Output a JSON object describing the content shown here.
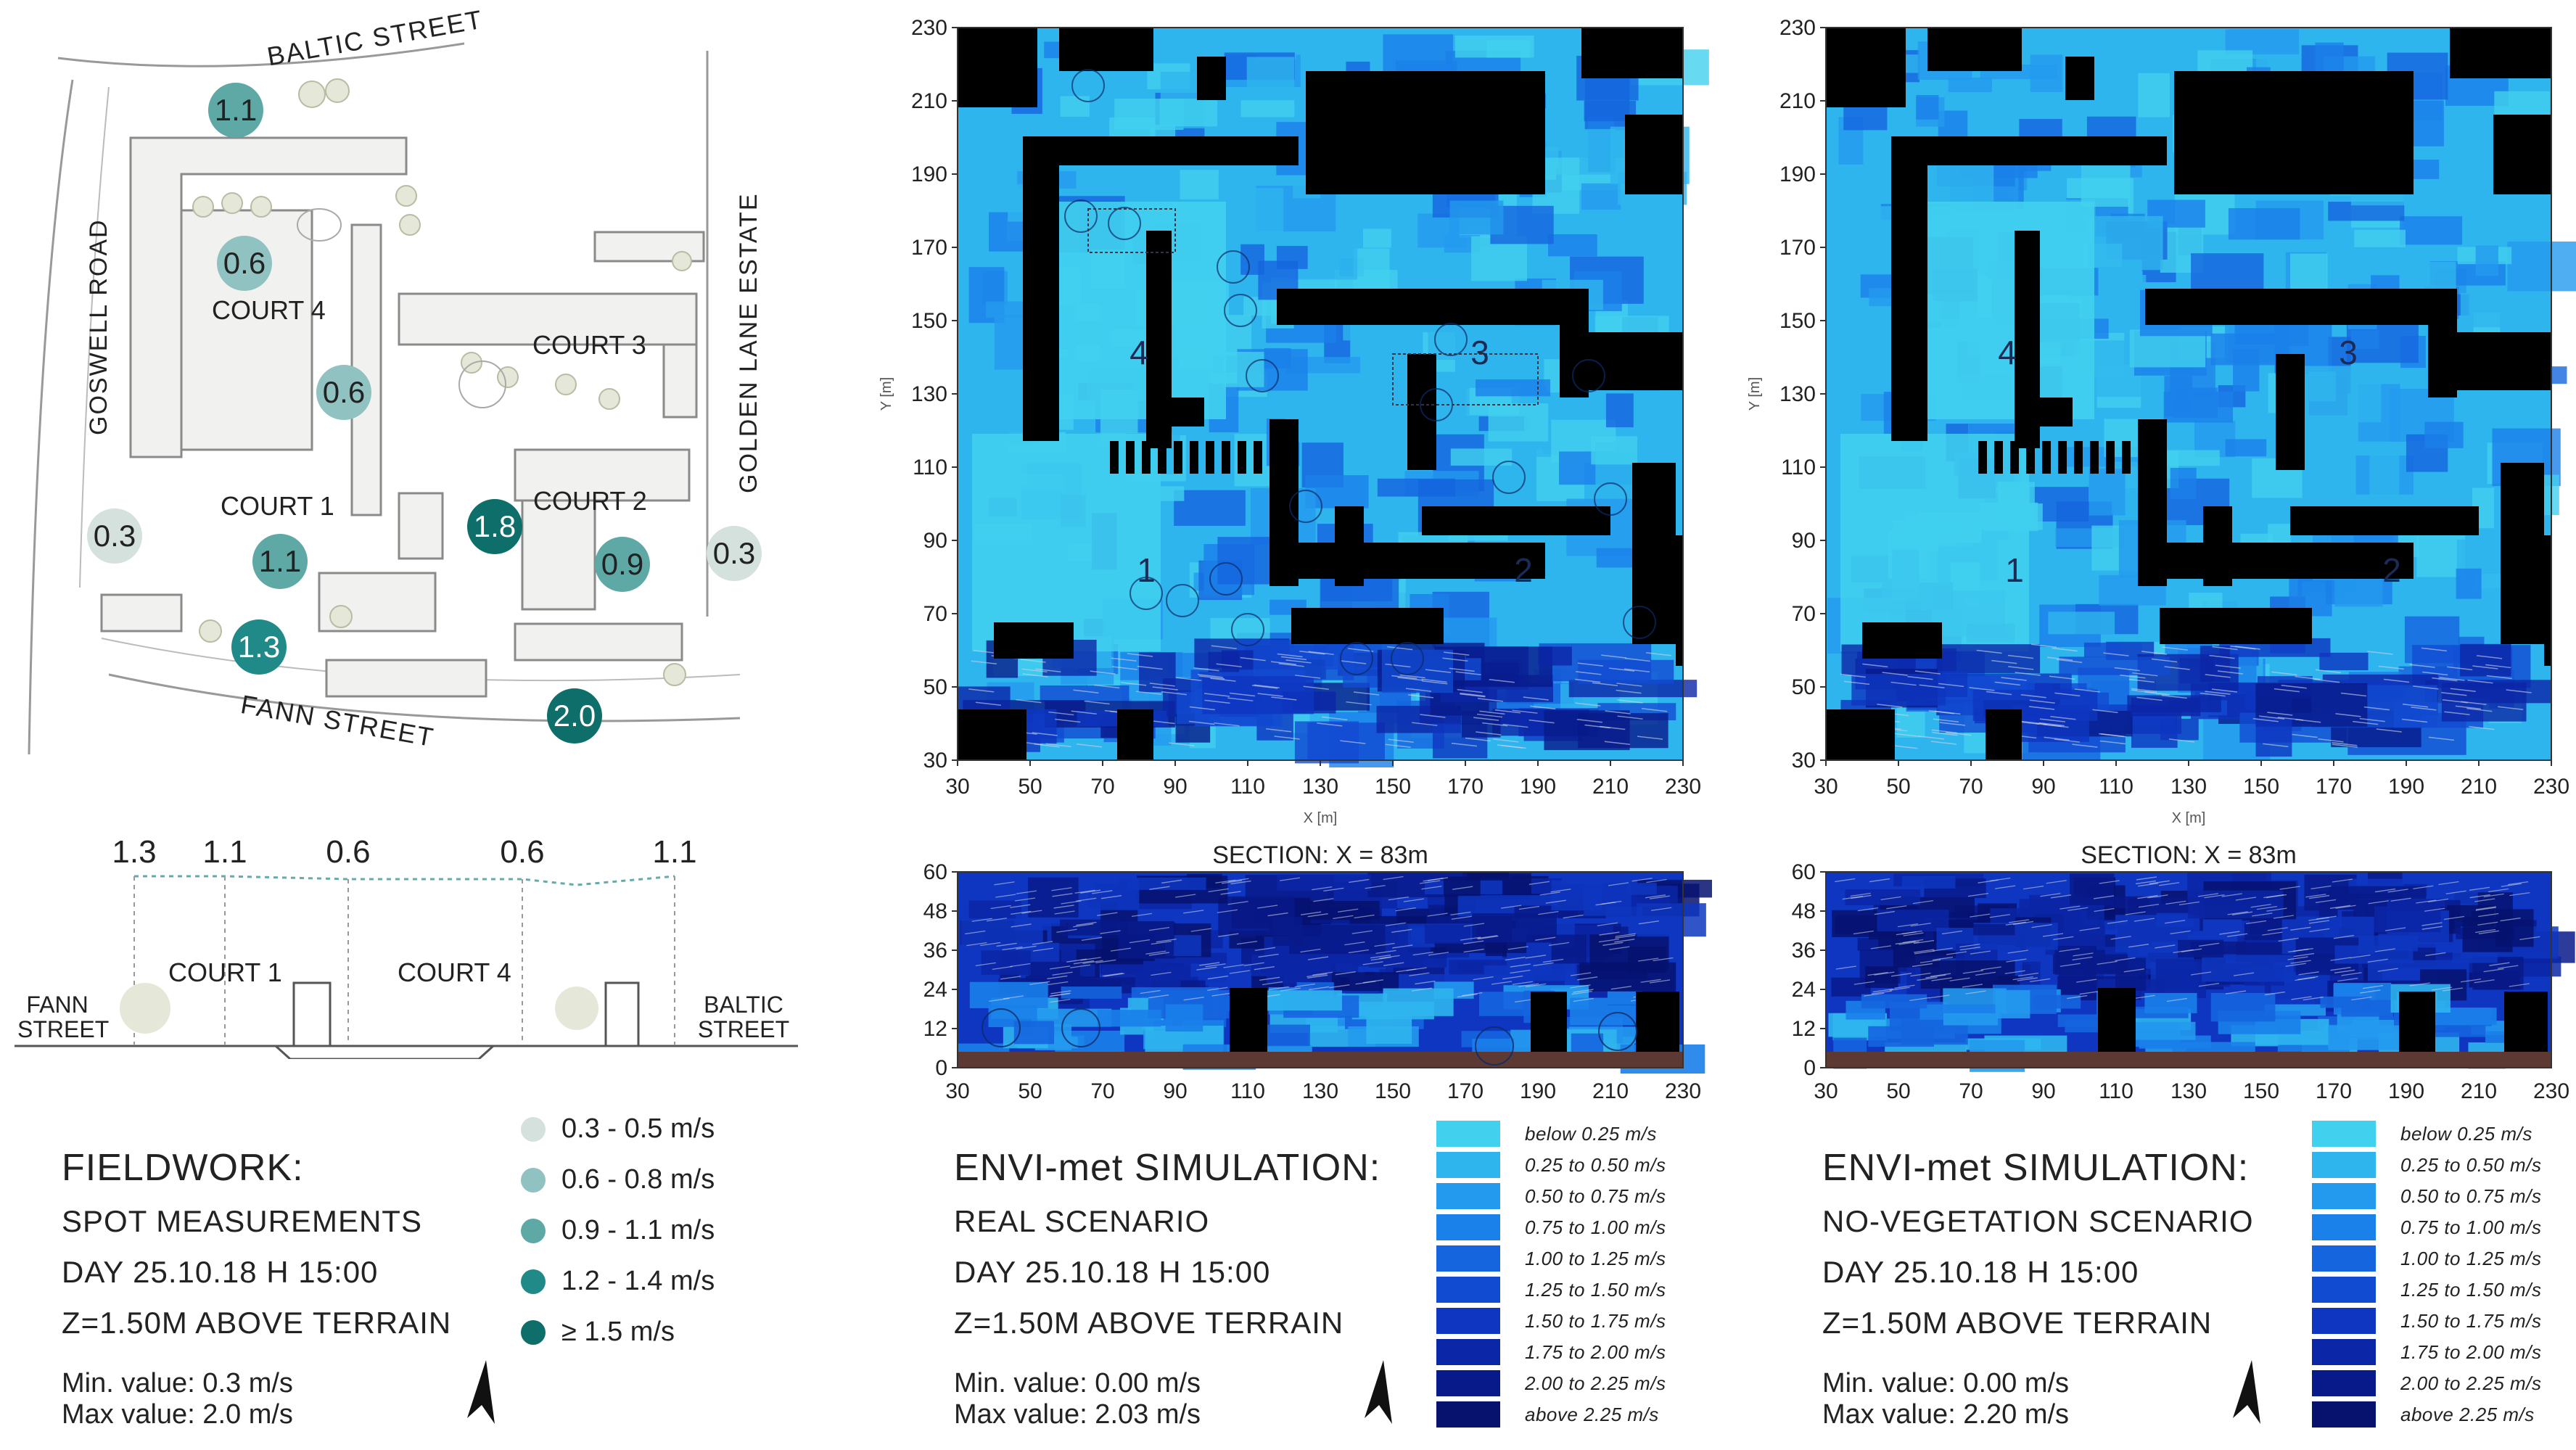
{
  "fieldwork": {
    "map": {
      "streets": {
        "baltic": "BALTIC STREET",
        "goswell": "GOSWELL ROAD",
        "golden": "GOLDEN LANE ESTATE",
        "fann": "FANN STREET"
      },
      "courts": [
        "COURT 4",
        "COURT 3",
        "COURT 1",
        "COURT 2"
      ],
      "measurements": [
        {
          "label": "1.1",
          "level": 0.9,
          "color": "#5ea8a6"
        },
        {
          "label": "0.6",
          "level": 0.6,
          "color": "#8fc2c0"
        },
        {
          "label": "0.6",
          "level": 0.6,
          "color": "#8fc2c0"
        },
        {
          "label": "0.3",
          "level": 0.3,
          "color": "#d4e1dd"
        },
        {
          "label": "1.1",
          "level": 0.9,
          "color": "#5ea8a6"
        },
        {
          "label": "1.3",
          "level": 1.2,
          "color": "#1f8a87"
        },
        {
          "label": "1.8",
          "level": 1.5,
          "color": "#0d6e6a"
        },
        {
          "label": "0.9",
          "level": 0.9,
          "color": "#5ea8a6"
        },
        {
          "label": "0.3",
          "level": 0.3,
          "color": "#d4e1dd"
        },
        {
          "label": "2.0",
          "level": 1.5,
          "color": "#0d6e6a"
        }
      ]
    },
    "section": {
      "values": [
        "1.3",
        "1.1",
        "0.6",
        "0.6",
        "1.1"
      ],
      "labels": {
        "fann": "FANN STREET",
        "baltic": "BALTIC STREET",
        "court1": "COURT 1",
        "court4": "COURT 4"
      }
    },
    "legend": [
      {
        "label": "0.3 -  0.5 m/s",
        "color": "#d4e1dd"
      },
      {
        "label": "0.6 -  0.8 m/s",
        "color": "#8fc2c0"
      },
      {
        "label": "0.9 -  1.1 m/s",
        "color": "#5ea8a6"
      },
      {
        "label": "1.2 -  1.4 m/s",
        "color": "#1f8a87"
      },
      {
        "label": "≥ 1.5 m/s",
        "color": "#0d6e6a"
      }
    ],
    "info": {
      "title": "FIELDWORK:",
      "line1": "SPOT MEASUREMENTS",
      "line2": "DAY 25.10.18 H 15:00",
      "line3": "Z=1.50M ABOVE TERRAIN",
      "min": "Min. value: 0.3 m/s",
      "max": "Max value: 2.0 m/s"
    }
  },
  "simulations": [
    {
      "plan": {
        "x_ticks": [
          "30",
          "50",
          "70",
          "90",
          "110",
          "130",
          "150",
          "170",
          "190",
          "210",
          "230"
        ],
        "y_ticks": [
          "230",
          "210",
          "190",
          "170",
          "150",
          "130",
          "110",
          "90",
          "70",
          "50",
          "30"
        ],
        "x_label": "X [m]",
        "y_label": "Y [m]",
        "court_numbers": [
          "4",
          "3",
          "1",
          "2"
        ]
      },
      "section": {
        "title": "SECTION: X = 83m",
        "y_ticks": [
          "60",
          "48",
          "36",
          "24",
          "12",
          "0"
        ],
        "x_ticks": [
          "30",
          "50",
          "70",
          "90",
          "110",
          "130",
          "150",
          "170",
          "190",
          "210",
          "230"
        ]
      },
      "info": {
        "title": "ENVI-met SIMULATION:",
        "line1": "REAL SCENARIO",
        "line2": "DAY 25.10.18 H 15:00",
        "line3": "Z=1.50M ABOVE TERRAIN",
        "min": "Min. value: 0.00 m/s",
        "max": "Max value: 2.03 m/s"
      }
    },
    {
      "plan": {
        "x_ticks": [
          "30",
          "50",
          "70",
          "90",
          "110",
          "130",
          "150",
          "170",
          "190",
          "210",
          "230"
        ],
        "y_ticks": [
          "230",
          "210",
          "190",
          "170",
          "150",
          "130",
          "110",
          "90",
          "70",
          "50",
          "30"
        ],
        "x_label": "X [m]",
        "y_label": "Y [m]",
        "court_numbers": [
          "4",
          "3",
          "1",
          "2"
        ]
      },
      "section": {
        "title": "SECTION: X = 83m",
        "y_ticks": [
          "60",
          "48",
          "36",
          "24",
          "12",
          "0"
        ],
        "x_ticks": [
          "30",
          "50",
          "70",
          "90",
          "110",
          "130",
          "150",
          "170",
          "190",
          "210",
          "230"
        ]
      },
      "info": {
        "title": "ENVI-met SIMULATION:",
        "line1": "NO-VEGETATION SCENARIO",
        "line2": "DAY 25.10.18 H 15:00",
        "line3": "Z=1.50M ABOVE TERRAIN",
        "min": "Min. value: 0.00 m/s",
        "max": "Max value: 2.20 m/s"
      }
    }
  ],
  "sim_legend": [
    {
      "label": "below 0.25 m/s",
      "color": "#41d0ee"
    },
    {
      "label": "0.25 to 0.50 m/s",
      "color": "#2fb5ee"
    },
    {
      "label": "0.50 to 0.75 m/s",
      "color": "#239aee"
    },
    {
      "label": "0.75 to 1.00 m/s",
      "color": "#1a80ea"
    },
    {
      "label": "1.00 to 1.25 m/s",
      "color": "#1565df"
    },
    {
      "label": "1.25 to 1.50 m/s",
      "color": "#114bd2"
    },
    {
      "label": "1.50 to 1.75 m/s",
      "color": "#0e36c0"
    },
    {
      "label": "1.75 to 2.00 m/s",
      "color": "#0b26a6"
    },
    {
      "label": "2.00 to 2.25 m/s",
      "color": "#081a8a"
    },
    {
      "label": "above 2.25 m/s",
      "color": "#06126e"
    }
  ]
}
